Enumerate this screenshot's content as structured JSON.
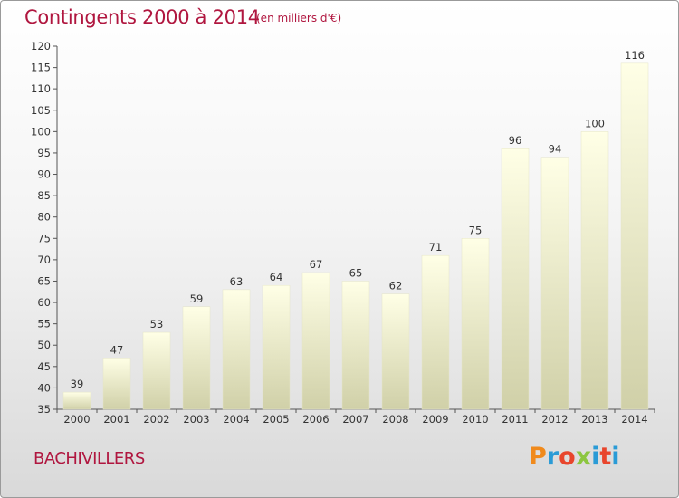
{
  "header": {
    "title": "Contingents 2000 à 2014",
    "subtitle": "(en milliers d'€)"
  },
  "footer": {
    "place": "BACHIVILLERS",
    "brand": "Proxiti",
    "brand_colors": [
      "#f08a1c",
      "#2a9bd6",
      "#e8452c",
      "#8cc63f",
      "#2a9bd6",
      "#e8452c",
      "#2a9bd6"
    ]
  },
  "colors": {
    "accent": "#b0163f",
    "bar_top": "#ffffe6",
    "bar_bottom": "#d0d0a8",
    "axis": "#555555",
    "text": "#333333"
  },
  "chart_data": {
    "type": "bar",
    "title": "Contingents 2000 à 2014",
    "subtitle": "(en milliers d'€)",
    "xlabel": "",
    "ylabel": "",
    "categories": [
      "2000",
      "2001",
      "2002",
      "2003",
      "2004",
      "2005",
      "2006",
      "2007",
      "2008",
      "2009",
      "2010",
      "2011",
      "2012",
      "2013",
      "2014"
    ],
    "values": [
      39,
      47,
      53,
      59,
      63,
      64,
      67,
      65,
      62,
      71,
      75,
      96,
      94,
      100,
      116
    ],
    "ylim": [
      35,
      120
    ],
    "yticks": [
      35,
      40,
      45,
      50,
      55,
      60,
      65,
      70,
      75,
      80,
      85,
      90,
      95,
      100,
      105,
      110,
      115,
      120
    ],
    "grid": false,
    "legend": "none"
  }
}
